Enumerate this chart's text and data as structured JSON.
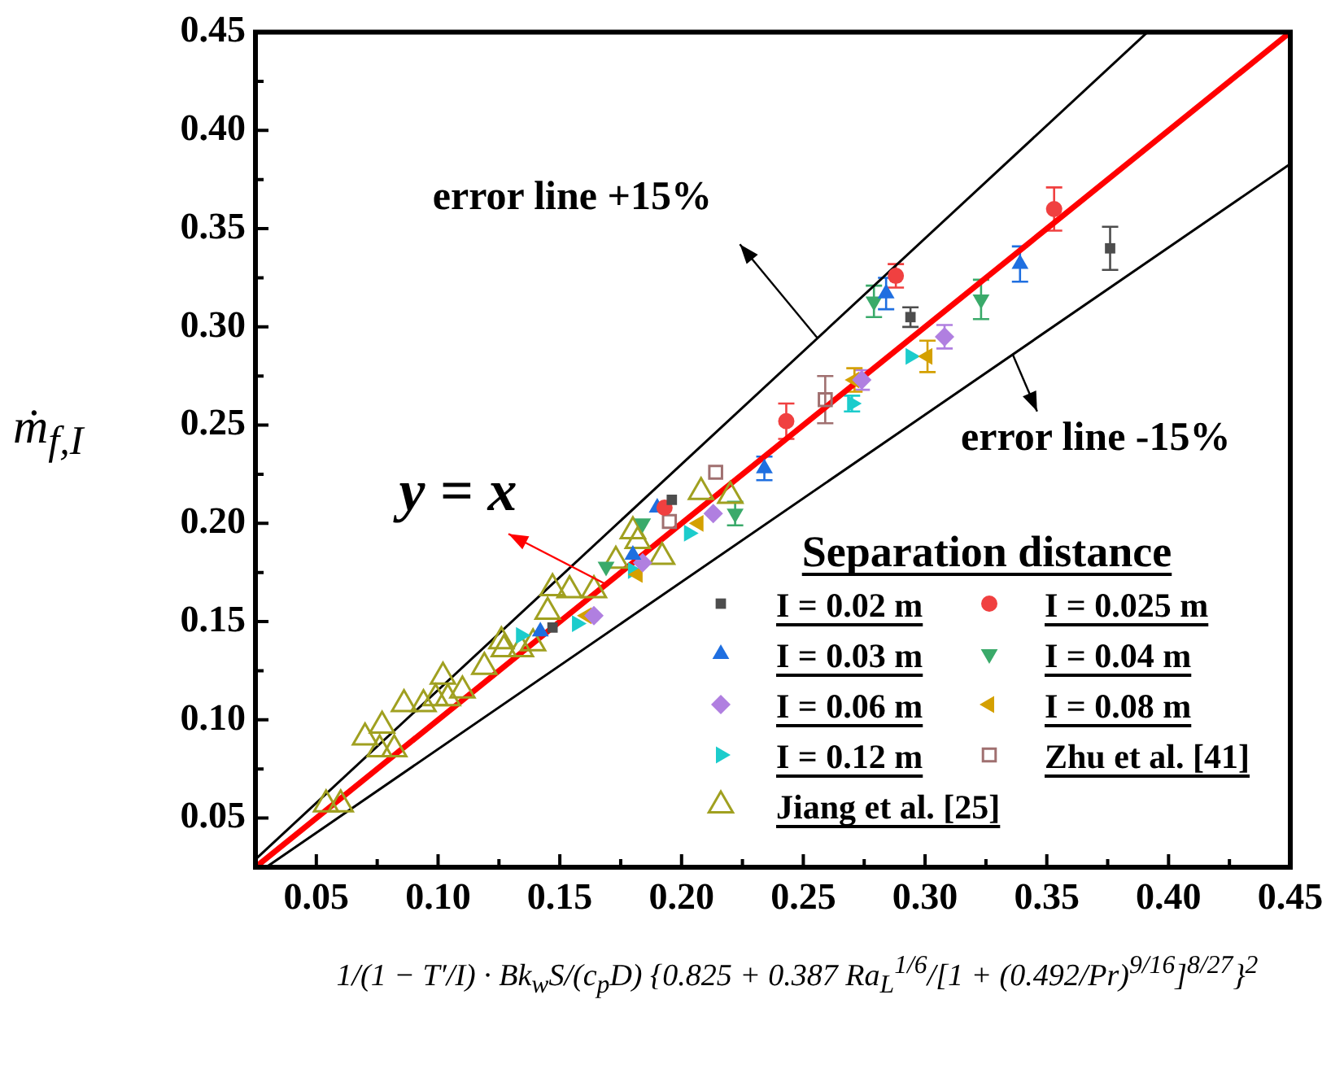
{
  "chart_data": {
    "type": "scatter",
    "xlabel": "1/(1 − T′/I) · Bk$_{w}$S/(c$_{p}$D) {0.825 + 0.387 Ra$_{L}$$^{1/6}$/[1 + (0.492/Pr)$^{9/16}$]$^{8/27}$}$^{2}$",
    "ylabel": "ṁ$_{f,I}$",
    "legend_title": "Separation distance",
    "legend": "bottom right",
    "xlim": [
      0.025,
      0.45
    ],
    "ylim": [
      0.025,
      0.45
    ],
    "xticks": [
      0.05,
      {
        "value": 0.1,
        "label": "0.10"
      },
      0.15,
      {
        "value": 0.2,
        "label": "0.20"
      },
      0.25,
      {
        "value": 0.3,
        "label": "0.30"
      },
      0.35,
      {
        "value": 0.4,
        "label": "0.40"
      },
      0.45
    ],
    "yticks": [
      0.05,
      {
        "value": 0.1,
        "label": "0.10"
      },
      0.15,
      {
        "value": 0.2,
        "label": "0.20"
      },
      0.25,
      {
        "value": 0.3,
        "label": "0.30"
      },
      0.35,
      {
        "value": 0.4,
        "label": "0.40"
      },
      0.45
    ],
    "annotations": [
      {
        "text": "error line +15%",
        "x": 0.256,
        "y": 0.294
      },
      {
        "text": "error line -15%",
        "x": 0.336,
        "y": 0.286
      },
      {
        "text": "y = x",
        "x": 0.169,
        "y": 0.169
      }
    ],
    "series": [
      {
        "name": "I = 0.02 m",
        "color": "#4d4d4d",
        "marker": "square",
        "x": [
          0.376,
          0.294,
          0.196,
          0.147
        ],
        "values": [
          0.34,
          0.305,
          0.212,
          0.147
        ],
        "errors": [
          0.011,
          0.005,
          null,
          null
        ]
      },
      {
        "name": "I = 0.025 m",
        "color": "#f04040",
        "marker": "circle",
        "x": [
          0.353,
          0.288,
          0.243,
          0.193
        ],
        "values": [
          0.36,
          0.326,
          0.252,
          0.208
        ],
        "errors": [
          0.011,
          0.006,
          0.009,
          null
        ]
      },
      {
        "name": "I = 0.03 m",
        "color": "#1f6fe0",
        "marker": "triangle",
        "x": [
          0.339,
          0.284,
          0.234,
          0.19,
          0.18,
          0.142
        ],
        "values": [
          0.332,
          0.317,
          0.228,
          0.208,
          0.184,
          0.145
        ],
        "errors": [
          0.009,
          0.008,
          0.006,
          null,
          null,
          null
        ]
      },
      {
        "name": "I = 0.04 m",
        "color": "#3aaa6a",
        "marker": "triangle",
        "x": [
          0.323,
          0.279,
          0.222,
          0.184,
          0.169
        ],
        "values": [
          0.314,
          0.313,
          0.205,
          0.2,
          0.178
        ],
        "errors": [
          0.01,
          0.008,
          0.006,
          null,
          null
        ]
      },
      {
        "name": "I = 0.06 m",
        "color": "#b07fe0",
        "marker": "diamond",
        "x": [
          0.308,
          0.274,
          0.213,
          0.184,
          0.164
        ],
        "values": [
          0.295,
          0.273,
          0.205,
          0.18,
          0.153
        ],
        "errors": [
          0.006,
          0.005,
          null,
          null,
          null
        ]
      },
      {
        "name": "I = 0.08 m",
        "color": "#d4a000",
        "marker": "triangle",
        "x": [
          0.301,
          0.271,
          0.207,
          0.182,
          0.161
        ],
        "values": [
          0.285,
          0.273,
          0.2,
          0.174,
          0.153
        ],
        "errors": [
          0.008,
          0.006,
          null,
          null,
          null
        ]
      },
      {
        "name": "I = 0.12 m",
        "color": "#1ccccc",
        "marker": "triangle",
        "x": [
          0.294,
          0.27,
          0.203,
          0.18,
          0.157,
          0.134
        ],
        "values": [
          0.285,
          0.261,
          0.195,
          0.176,
          0.149,
          0.143
        ],
        "errors": [
          null,
          0.004,
          null,
          null,
          null,
          null
        ]
      },
      {
        "name": "Zhu et al. [41]",
        "color": "#a07070",
        "marker": "square",
        "x": [
          0.259,
          0.214,
          0.195
        ],
        "values": [
          0.263,
          0.226,
          0.201
        ],
        "errors": [
          0.012,
          null,
          null
        ]
      },
      {
        "name": "Jiang et al. [25]",
        "color": "#a0a020",
        "marker": "triangle",
        "x": [
          0.054,
          0.06,
          0.07,
          0.077,
          0.076,
          0.082,
          0.086,
          0.094,
          0.102,
          0.099,
          0.104,
          0.11,
          0.119,
          0.126,
          0.127,
          0.134,
          0.139,
          0.145,
          0.147,
          0.154,
          0.164,
          0.173,
          0.18,
          0.182,
          0.192,
          0.208,
          0.22
        ],
        "values": [
          0.057,
          0.057,
          0.091,
          0.097,
          0.085,
          0.085,
          0.108,
          0.108,
          0.122,
          0.111,
          0.111,
          0.115,
          0.127,
          0.14,
          0.136,
          0.136,
          0.139,
          0.155,
          0.167,
          0.166,
          0.166,
          0.181,
          0.196,
          0.191,
          0.183,
          0.216,
          0.214
        ]
      },
      {
        "type": "line",
        "color": "#000000",
        "x": [
          0.025,
          0.3913
        ],
        "values": [
          0.029,
          0.45
        ]
      },
      {
        "type": "line",
        "color": "#000000",
        "x": [
          0.0294,
          0.45
        ],
        "values": [
          0.025,
          0.383
        ]
      },
      {
        "type": "line",
        "color": "#ff0000",
        "x": [
          0.025,
          0.45
        ],
        "values": [
          0.025,
          0.45
        ]
      }
    ]
  }
}
